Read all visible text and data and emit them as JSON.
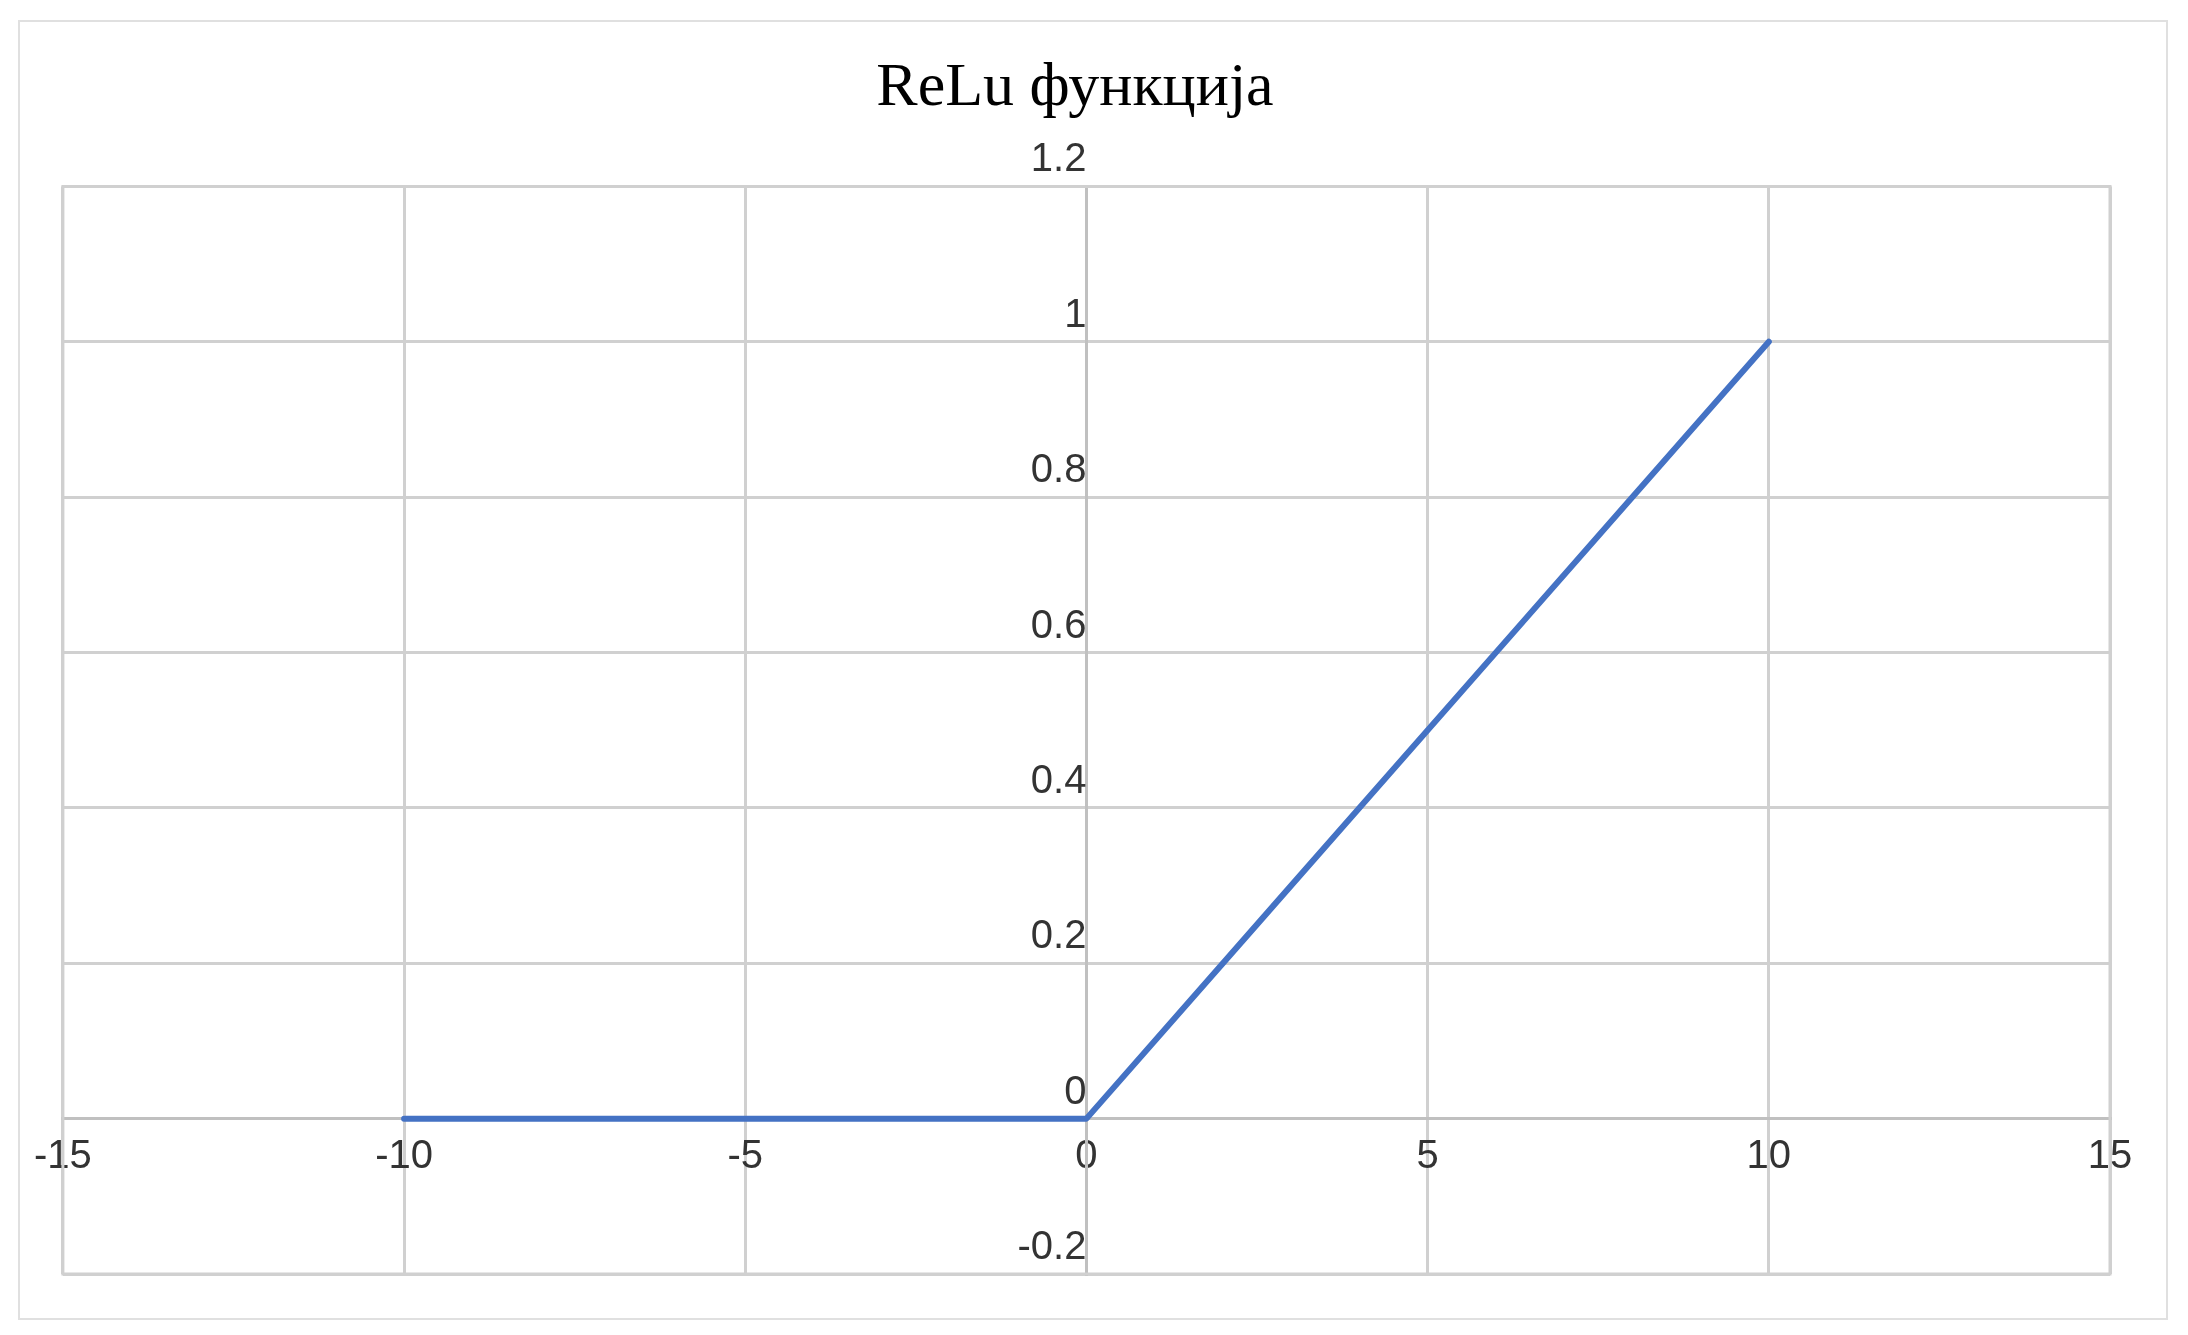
{
  "chart_data": {
    "type": "line",
    "title": "ReLu функција",
    "x": [
      -10,
      0,
      10
    ],
    "series": [
      {
        "color": "#4472c4",
        "values": [
          0,
          0,
          1
        ]
      }
    ],
    "xlim": [
      -15,
      15
    ],
    "xticks": [
      -15,
      -10,
      -5,
      0,
      5,
      10,
      15
    ],
    "ylim": [
      -0.2,
      1.2
    ],
    "yticks": [
      -0.2,
      0,
      0.2,
      0.4,
      0.6,
      0.8,
      1,
      1.2
    ],
    "grid": true,
    "legend": false,
    "marker": "none",
    "line_style": "solid"
  }
}
